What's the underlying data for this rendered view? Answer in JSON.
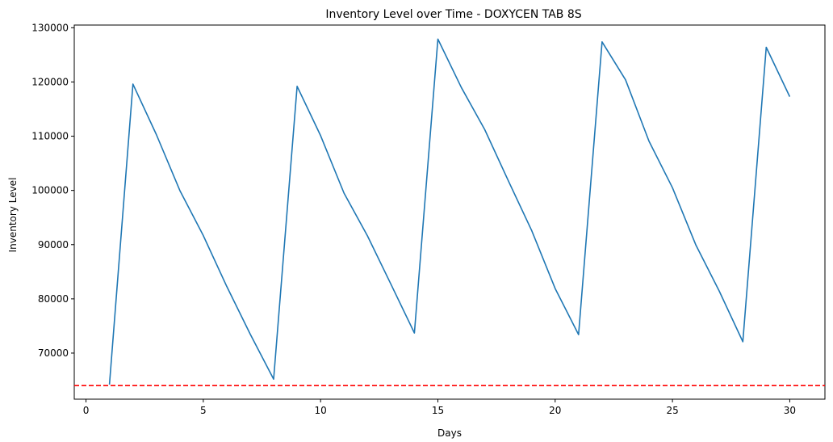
{
  "chart_data": {
    "type": "line",
    "title": "Inventory Level over Time - DOXYCEN TAB 8S",
    "xlabel": "Days",
    "ylabel": "Inventory Level",
    "xlim": [
      -0.5,
      31.5
    ],
    "ylim": [
      61500,
      130500
    ],
    "x_ticks": [
      0,
      5,
      10,
      15,
      20,
      25,
      30
    ],
    "y_ticks": [
      70000,
      80000,
      90000,
      100000,
      110000,
      120000,
      130000
    ],
    "grid": false,
    "series": [
      {
        "color": "#1f77b4",
        "x": [
          1,
          2,
          3,
          4,
          5,
          6,
          7,
          8,
          9,
          10,
          11,
          12,
          13,
          14,
          15,
          16,
          17,
          18,
          19,
          20,
          21,
          22,
          23,
          24,
          25,
          26,
          27,
          28,
          29,
          30
        ],
        "values": [
          64200,
          119600,
          110300,
          100000,
          91700,
          82300,
          73500,
          65200,
          119200,
          110100,
          99500,
          91600,
          82700,
          73700,
          127900,
          119000,
          111200,
          101800,
          92600,
          81900,
          73400,
          127400,
          120400,
          109100,
          100500,
          89900,
          81400,
          72100,
          126400,
          117300
        ]
      }
    ],
    "reference_line": {
      "axis": "y",
      "value": 64000,
      "color": "#ff0000",
      "style": "dashed"
    }
  }
}
